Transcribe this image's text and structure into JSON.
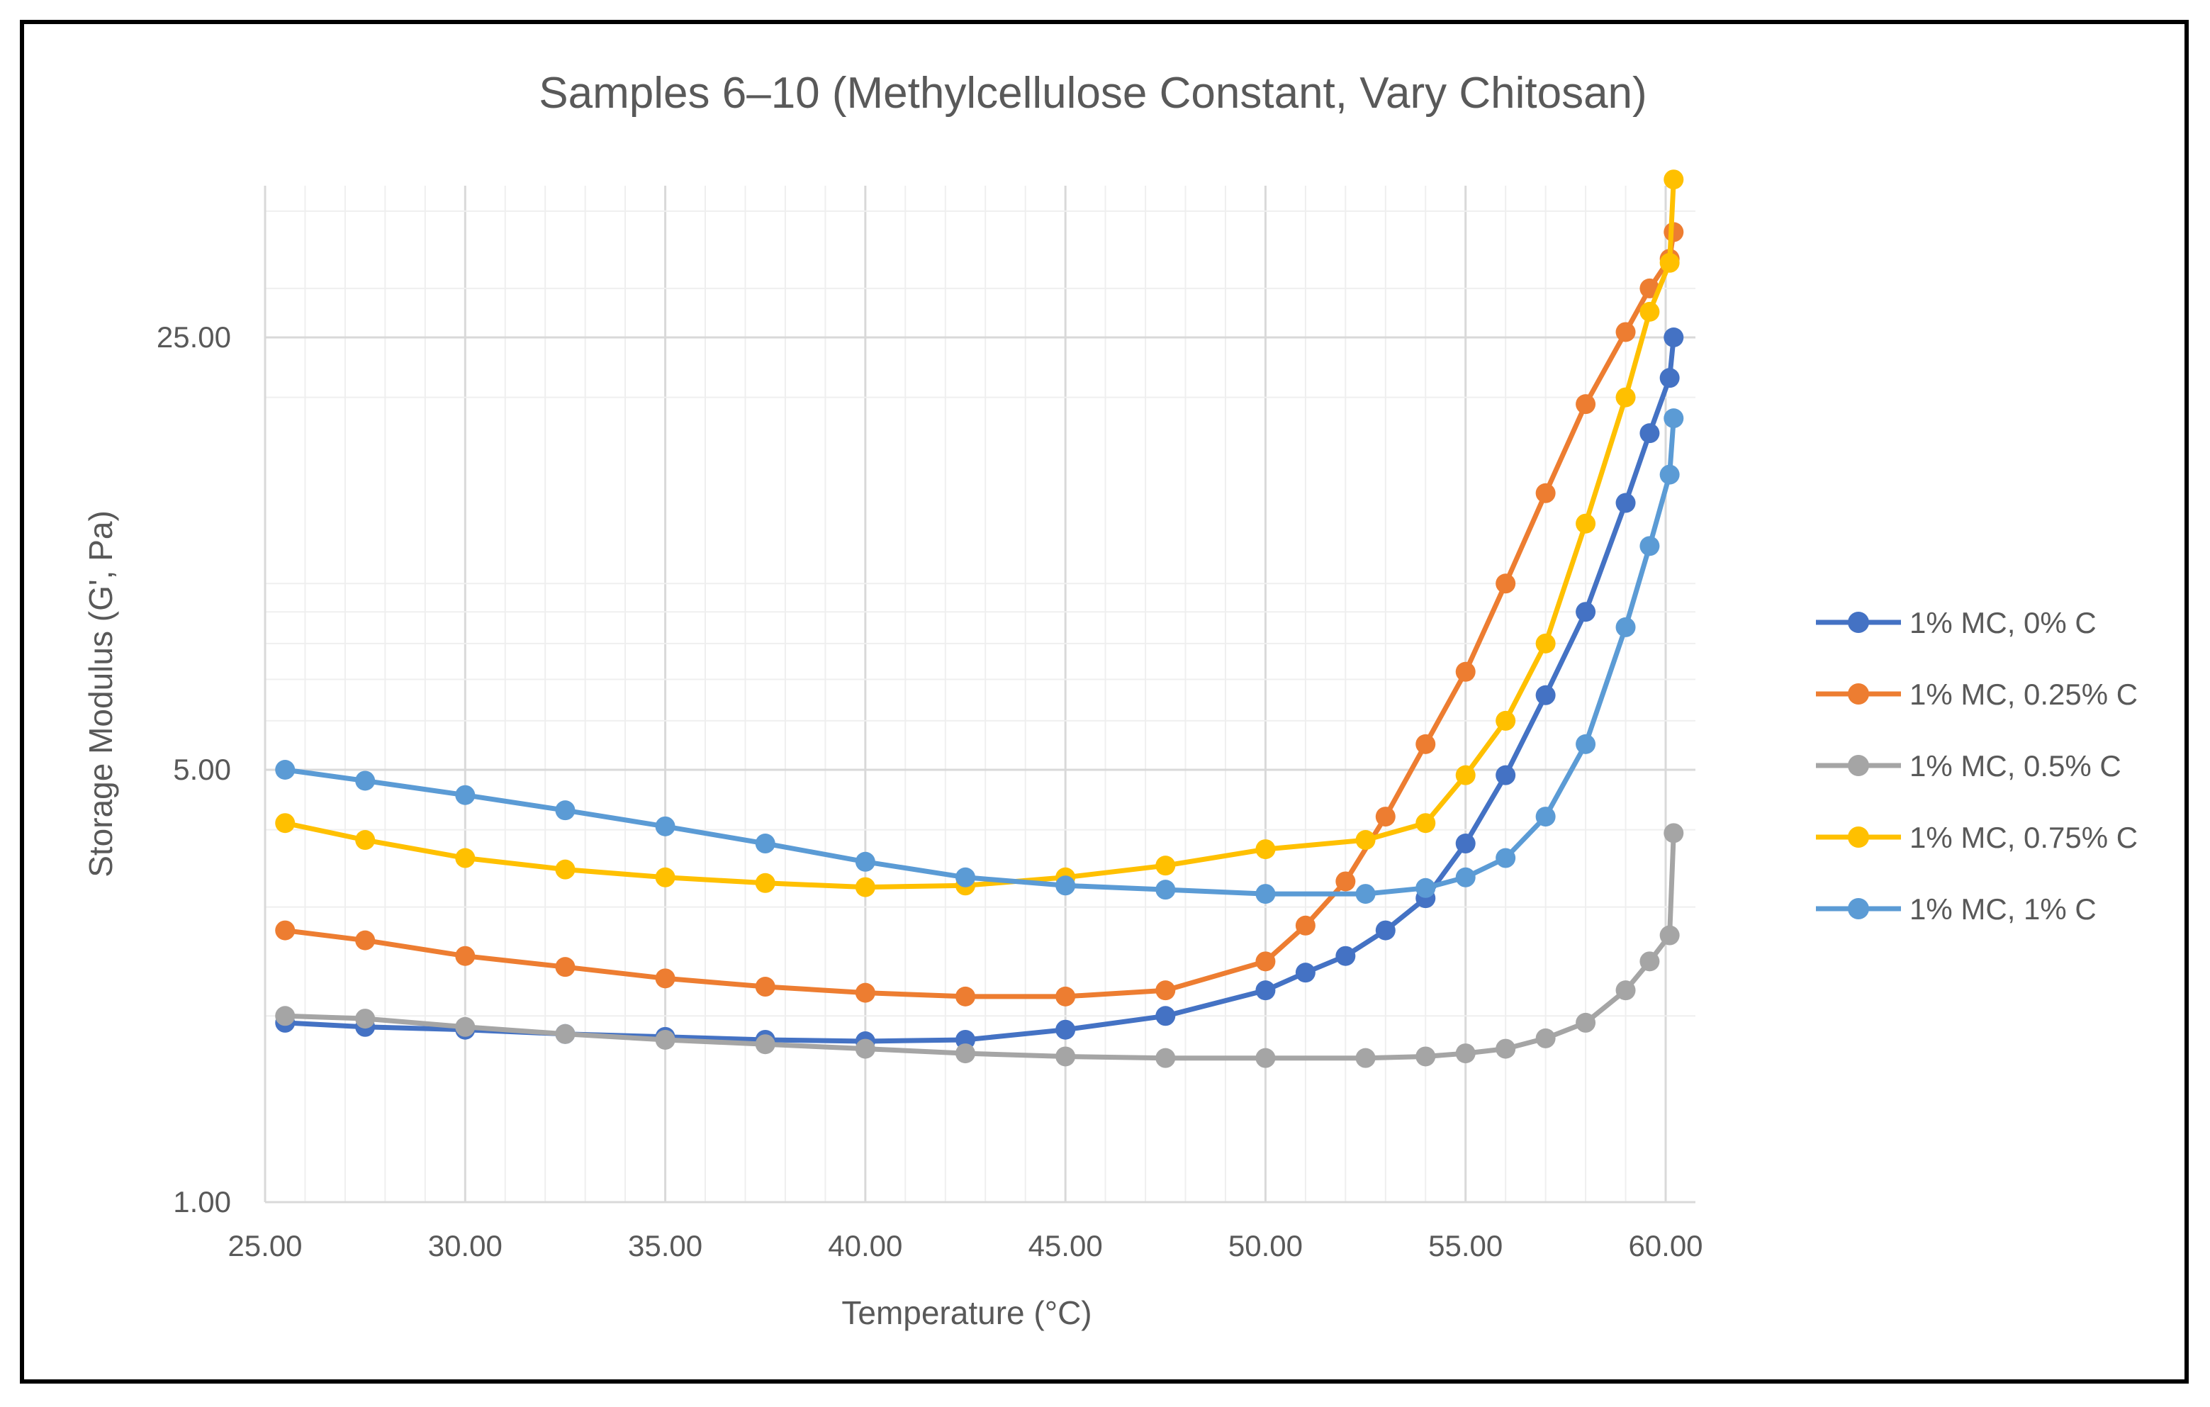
{
  "chart_data": {
    "type": "line",
    "title": "Samples 6–10 (Methylcellulose Constant, Vary Chitosan)",
    "xlabel": "Temperature (°C)",
    "ylabel": "Storage Modulus (G', Pa)",
    "x_scale": "linear",
    "y_scale": "log",
    "xlim": [
      25,
      61
    ],
    "ylim": [
      1,
      50
    ],
    "x_ticks": [
      "25.00",
      "30.00",
      "35.00",
      "40.00",
      "45.00",
      "50.00",
      "55.00",
      "60.00"
    ],
    "y_ticks": [
      "1.00",
      "5.00",
      "25.00"
    ],
    "grid": true,
    "legend_position": "right",
    "marker": "circle",
    "series": [
      {
        "name": "1% MC, 0% C",
        "color": "#4472C4",
        "x": [
          25.5,
          27.5,
          30,
          32.5,
          35,
          37.5,
          40,
          42.5,
          45,
          47.5,
          50,
          51,
          52,
          53,
          54,
          55,
          56,
          57,
          58,
          59,
          59.6,
          60.1,
          60.2
        ],
        "y": [
          1.95,
          1.92,
          1.9,
          1.87,
          1.85,
          1.83,
          1.82,
          1.83,
          1.9,
          2.0,
          2.2,
          2.35,
          2.5,
          2.75,
          3.1,
          3.8,
          4.9,
          6.6,
          9.0,
          13.5,
          17.5,
          21.5,
          25.0
        ]
      },
      {
        "name": "1% MC, 0.25% C",
        "color": "#ED7D31",
        "x": [
          25.5,
          27.5,
          30,
          32.5,
          35,
          37.5,
          40,
          42.5,
          45,
          47.5,
          50,
          51,
          52,
          53,
          54,
          55,
          56,
          57,
          58,
          59,
          59.6,
          60.1,
          60.2
        ],
        "y": [
          2.75,
          2.65,
          2.5,
          2.4,
          2.3,
          2.23,
          2.18,
          2.15,
          2.15,
          2.2,
          2.45,
          2.8,
          3.3,
          4.2,
          5.5,
          7.2,
          10.0,
          14.0,
          19.5,
          25.5,
          30.0,
          33.5,
          37.0
        ]
      },
      {
        "name": "1% MC, 0.5% C",
        "color": "#A5A5A5",
        "x": [
          25.5,
          27.5,
          30,
          32.5,
          35,
          37.5,
          40,
          42.5,
          45,
          47.5,
          50,
          52.5,
          54,
          55,
          56,
          57,
          58,
          59,
          59.6,
          60.1,
          60.2
        ],
        "y": [
          2.0,
          1.98,
          1.92,
          1.87,
          1.83,
          1.8,
          1.77,
          1.74,
          1.72,
          1.71,
          1.71,
          1.71,
          1.72,
          1.74,
          1.77,
          1.84,
          1.95,
          2.2,
          2.45,
          2.7,
          3.95
        ]
      },
      {
        "name": "1% MC, 0.75% C",
        "color": "#FFC000",
        "x": [
          25.5,
          27.5,
          30,
          32.5,
          35,
          37.5,
          40,
          42.5,
          45,
          47.5,
          50,
          52.5,
          54,
          55,
          56,
          57,
          58,
          59,
          59.6,
          60.1,
          60.2
        ],
        "y": [
          4.1,
          3.85,
          3.6,
          3.45,
          3.35,
          3.28,
          3.23,
          3.25,
          3.35,
          3.5,
          3.72,
          3.85,
          4.1,
          4.9,
          6.0,
          8.0,
          12.5,
          20.0,
          27.5,
          33.0,
          45.0
        ]
      },
      {
        "name": "1% MC, 1% C",
        "color": "#5B9BD5",
        "x": [
          25.5,
          27.5,
          30,
          32.5,
          35,
          37.5,
          40,
          42.5,
          45,
          47.5,
          50,
          52.5,
          54,
          55,
          56,
          57,
          58,
          59,
          59.6,
          60.1,
          60.2
        ],
        "y": [
          5.0,
          4.8,
          4.55,
          4.3,
          4.05,
          3.8,
          3.55,
          3.35,
          3.25,
          3.2,
          3.15,
          3.15,
          3.22,
          3.35,
          3.6,
          4.2,
          5.5,
          8.5,
          11.5,
          15.0,
          18.5
        ]
      }
    ]
  }
}
